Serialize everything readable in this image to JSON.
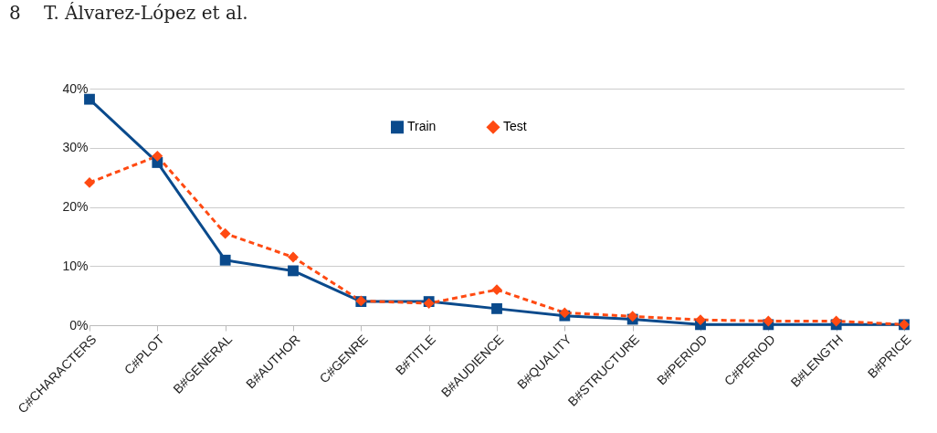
{
  "chart_data": {
    "type": "line",
    "annotations": [
      "8",
      "T. Álvarez-López et al."
    ],
    "categories": [
      "C#CHARACTERS",
      "C#PLOT",
      "B#GENERAL",
      "B#AUTHOR",
      "C#GENRE",
      "B#TITLE",
      "B#AUDIENCE",
      "B#QUALITY",
      "B#STRUCTURE",
      "B#PERIOD",
      "C#PERIOD",
      "B#LENGTH",
      "B#PRICE"
    ],
    "series": [
      {
        "name": "Train",
        "color": "#0a4a8c",
        "marker": "square",
        "line_style": "solid",
        "values": [
          38.2,
          27.5,
          11.0,
          9.2,
          4.0,
          4.0,
          2.8,
          1.6,
          1.0,
          0.1,
          0.1,
          0.1,
          0.1
        ]
      },
      {
        "name": "Test",
        "color": "#ff4a12",
        "marker": "diamond",
        "line_style": "dashed",
        "values": [
          24.1,
          28.6,
          15.5,
          11.5,
          4.1,
          3.7,
          6.0,
          2.1,
          1.5,
          0.9,
          0.7,
          0.7,
          0.1
        ]
      }
    ],
    "ylim": [
      0,
      40
    ],
    "yticks": [
      {
        "value": 0,
        "label": "0%"
      },
      {
        "value": 10,
        "label": "10%"
      },
      {
        "value": 20,
        "label": "20%"
      },
      {
        "value": 30,
        "label": "30%"
      },
      {
        "value": 40,
        "label": "40%"
      }
    ],
    "grid": "y",
    "legend": "top"
  }
}
